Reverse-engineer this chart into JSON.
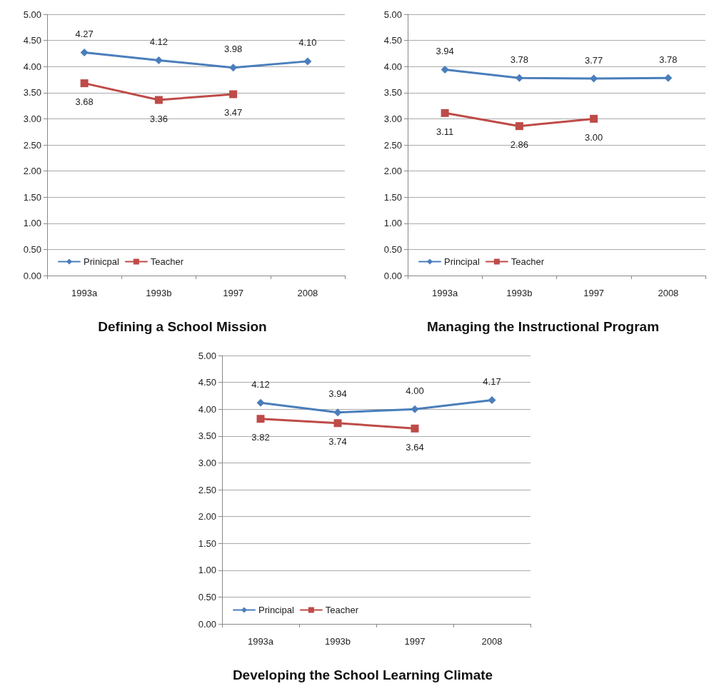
{
  "chart_data": [
    {
      "type": "line",
      "title": "Defining a School Mission",
      "categories": [
        "1993a",
        "1993b",
        "1997",
        "2008"
      ],
      "ylim": [
        0,
        5
      ],
      "yticks": [
        {
          "value": 0,
          "label": "0.00"
        },
        {
          "value": 0.5,
          "label": "0.50"
        },
        {
          "value": 1,
          "label": "1.00"
        },
        {
          "value": 1.5,
          "label": "1.50"
        },
        {
          "value": 2,
          "label": "2.00"
        },
        {
          "value": 2.5,
          "label": "2.50"
        },
        {
          "value": 3,
          "label": "3.00"
        },
        {
          "value": 3.5,
          "label": "3.50"
        },
        {
          "value": 4,
          "label": "4.00"
        },
        {
          "value": 4.5,
          "label": "4.50"
        },
        {
          "value": 5,
          "label": "5.00"
        }
      ],
      "grid": "y",
      "legend": "bottom left",
      "series": [
        {
          "name": "Prinicpal",
          "color": "#4a7ebb",
          "marker": "diamond",
          "values": [
            4.27,
            4.12,
            3.98,
            4.1
          ],
          "value_labels": [
            "4.27",
            "4.12",
            "3.98",
            "4.10"
          ]
        },
        {
          "name": "Teacher",
          "color": "#be4b48",
          "marker": "square",
          "values": [
            3.68,
            3.36,
            3.47,
            null
          ],
          "value_labels": [
            "3.68",
            "3.36",
            "3.47",
            null
          ]
        }
      ]
    },
    {
      "type": "line",
      "title": "Managing the Instructional Program",
      "categories": [
        "1993a",
        "1993b",
        "1997",
        "2008"
      ],
      "ylim": [
        0,
        5
      ],
      "yticks": [
        {
          "value": 0,
          "label": "0.00"
        },
        {
          "value": 0.5,
          "label": "0.50"
        },
        {
          "value": 1,
          "label": "1.00"
        },
        {
          "value": 1.5,
          "label": "1.50"
        },
        {
          "value": 2,
          "label": "2.00"
        },
        {
          "value": 2.5,
          "label": "2.50"
        },
        {
          "value": 3,
          "label": "3.00"
        },
        {
          "value": 3.5,
          "label": "3.50"
        },
        {
          "value": 4,
          "label": "4.00"
        },
        {
          "value": 4.5,
          "label": "4.50"
        },
        {
          "value": 5,
          "label": "5.00"
        }
      ],
      "grid": "y",
      "legend": "bottom left",
      "series": [
        {
          "name": "Principal",
          "color": "#4a7ebb",
          "marker": "diamond",
          "values": [
            3.94,
            3.78,
            3.77,
            3.78
          ],
          "value_labels": [
            "3.94",
            "3.78",
            "3.77",
            "3.78"
          ]
        },
        {
          "name": "Teacher",
          "color": "#be4b48",
          "marker": "square",
          "values": [
            3.11,
            2.86,
            3.0,
            null
          ],
          "value_labels": [
            "3.11",
            "2.86",
            "3.00",
            null
          ]
        }
      ]
    },
    {
      "type": "line",
      "title": "Developing the School Learning Climate",
      "categories": [
        "1993a",
        "1993b",
        "1997",
        "2008"
      ],
      "ylim": [
        0,
        5
      ],
      "yticks": [
        {
          "value": 0,
          "label": "0.00"
        },
        {
          "value": 0.5,
          "label": "0.50"
        },
        {
          "value": 1,
          "label": "1.00"
        },
        {
          "value": 1.5,
          "label": "1.50"
        },
        {
          "value": 2,
          "label": "2.00"
        },
        {
          "value": 2.5,
          "label": "2.50"
        },
        {
          "value": 3,
          "label": "3.00"
        },
        {
          "value": 3.5,
          "label": "3.50"
        },
        {
          "value": 4,
          "label": "4.00"
        },
        {
          "value": 4.5,
          "label": "4.50"
        },
        {
          "value": 5,
          "label": "5.00"
        }
      ],
      "grid": "y",
      "legend": "bottom left",
      "series": [
        {
          "name": "Principal",
          "color": "#4a7ebb",
          "marker": "diamond",
          "values": [
            4.12,
            3.94,
            4.0,
            4.17
          ],
          "value_labels": [
            "4.12",
            "3.94",
            "4.00",
            "4.17"
          ]
        },
        {
          "name": "Teacher",
          "color": "#be4b48",
          "marker": "square",
          "values": [
            3.82,
            3.74,
            3.64,
            null
          ],
          "value_labels": [
            "3.82",
            "3.74",
            "3.64",
            null
          ]
        }
      ]
    }
  ]
}
